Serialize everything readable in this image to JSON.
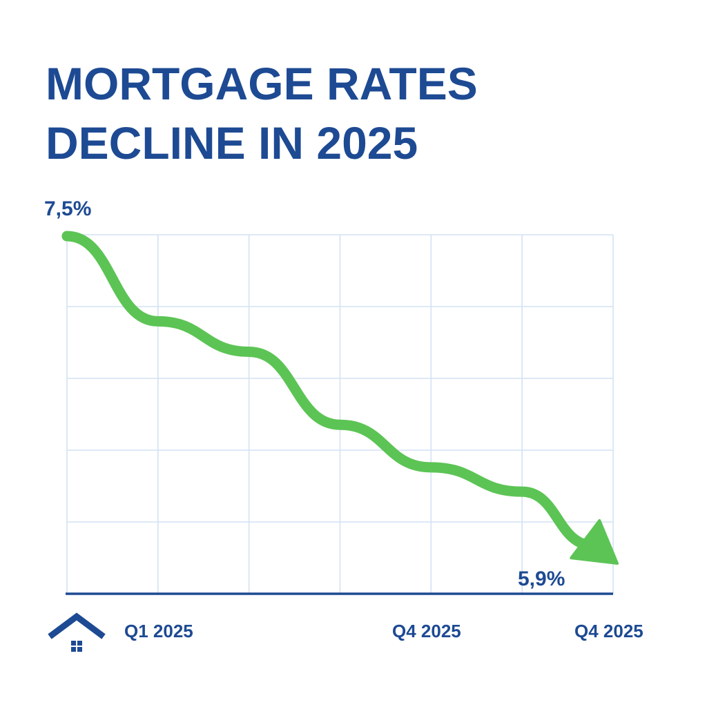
{
  "title_lines": [
    "MORTGAGE RATES",
    "DECLINE IN 2025"
  ],
  "colors": {
    "title": "#1d4a93",
    "line": "#5cc455",
    "grid": "#d3e2f3",
    "axis": "#1d4a93",
    "icon": "#1d4a93"
  },
  "icon": "house-icon",
  "chart_data": {
    "type": "line",
    "title": "MORTGAGE RATES DECLINE IN 2025",
    "xlabel": "",
    "ylabel": "",
    "x_tick_labels": [
      "Q1 2025",
      "Q4 2025",
      "Q4 2025"
    ],
    "x_tick_positions": [
      1,
      3.75,
      5.6
    ],
    "series": [
      {
        "x": [
          0,
          1,
          2,
          3,
          4,
          5,
          6
        ],
        "values": [
          7.5,
          7.08,
          6.93,
          6.57,
          6.36,
          6.24,
          5.9
        ]
      }
    ],
    "data_labels": [
      {
        "text": "7,5%",
        "x": 0,
        "value": 7.5
      },
      {
        "text": "5,9%",
        "x": 6,
        "value": 5.9
      }
    ],
    "xlim": [
      0,
      6
    ],
    "ylim": [
      5.9,
      7.5
    ],
    "grid": true,
    "end_marker": "arrow"
  }
}
